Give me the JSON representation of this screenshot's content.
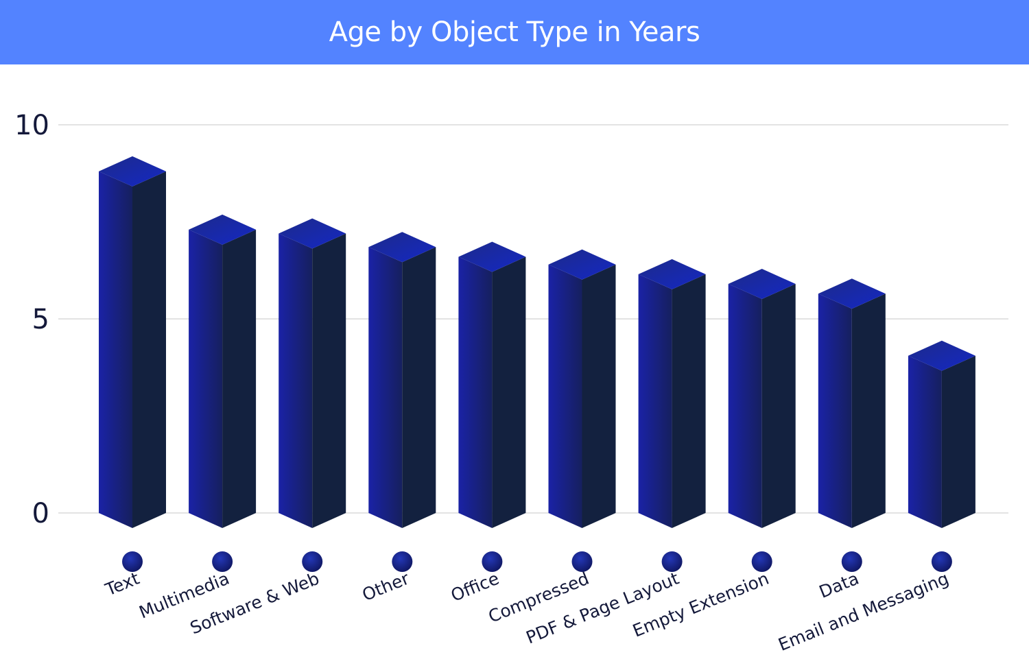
{
  "chart_data": {
    "type": "bar",
    "title": "Age by Object Type in Years",
    "categories": [
      "Text",
      "Multimedia",
      "Software & Web",
      "Other",
      "Office",
      "Compressed",
      "PDF & Page Layout",
      "Empty Extension",
      "Data",
      "Email and Messaging"
    ],
    "values": [
      8.8,
      7.3,
      7.2,
      6.85,
      6.6,
      6.4,
      6.15,
      5.9,
      5.65,
      4.05
    ],
    "ylim": [
      0,
      10
    ],
    "yticks": [
      0,
      5,
      10
    ],
    "ytick_labels": [
      "0",
      "5",
      "10"
    ],
    "grid": true,
    "legend": "none",
    "colors": {
      "header": "#5383ff",
      "bar_left_face": "#1a22a6",
      "bar_right_face": "#13213f",
      "bar_top": "#1428b8",
      "marker": "#1a2a9a",
      "grid": "#e3e3e3",
      "text": "#14193a"
    }
  }
}
